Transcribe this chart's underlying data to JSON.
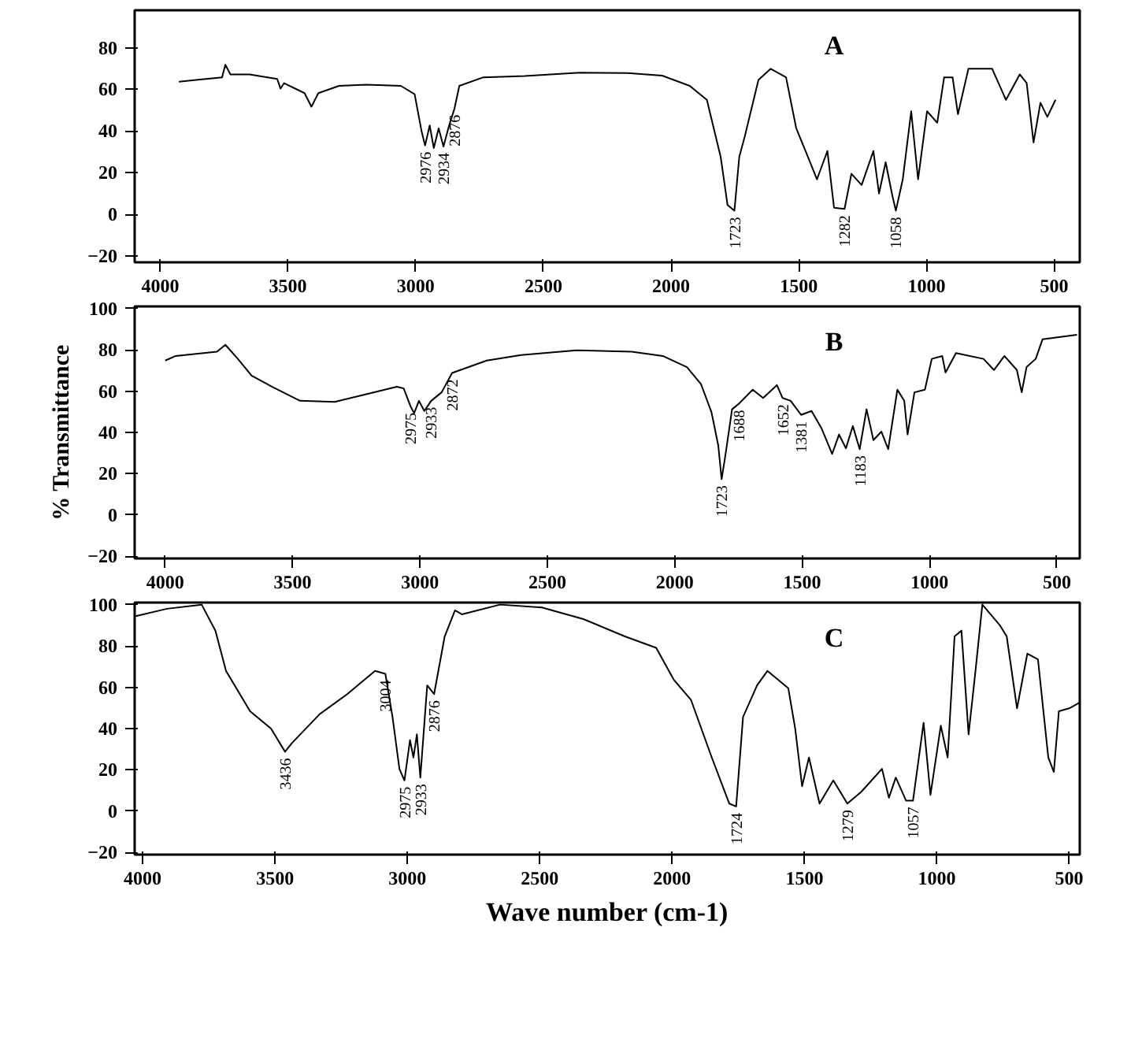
{
  "chart_data": [
    {
      "type": "line",
      "title": "A",
      "xlim": [
        4100,
        400
      ],
      "ylim": [
        -23,
        98
      ],
      "xticks": [
        4000,
        3500,
        3000,
        2500,
        2000,
        1500,
        1000,
        500
      ],
      "yticks": [
        -20,
        0,
        20,
        40,
        60,
        80
      ],
      "series": [
        {
          "color": "#000000",
          "x": [
            3927,
            3758,
            3745,
            3725,
            3650,
            3542,
            3529,
            3515,
            3435,
            3408,
            3381,
            3300,
            3192,
            3058,
            3004,
            2977,
            2963,
            2945,
            2929,
            2910,
            2891,
            2869,
            2848,
            2829,
            2735,
            2573,
            2358,
            2170,
            2035,
            1927,
            1860,
            1806,
            1779,
            1752,
            1733,
            1712,
            1658,
            1610,
            1550,
            1510,
            1469,
            1429,
            1388,
            1362,
            1321,
            1294,
            1254,
            1208,
            1186,
            1160,
            1133,
            1120,
            1093,
            1060,
            1033,
            998,
            958,
            931,
            898,
            877,
            836,
            743,
            689,
            635,
            608,
            581,
            554,
            527,
            495
          ],
          "values": [
            63.7,
            65.8,
            71.8,
            67.2,
            67.2,
            65.0,
            60.4,
            63,
            58.2,
            51.7,
            58.2,
            61.7,
            62.3,
            61.7,
            57.7,
            40,
            33.1,
            42.7,
            31.8,
            41.3,
            32.6,
            42.7,
            50.8,
            61.7,
            65.8,
            66.4,
            68,
            67.8,
            66.6,
            61.7,
            55,
            27.7,
            4.5,
            1.8,
            27.7,
            37.2,
            64.5,
            69.9,
            65.8,
            41.3,
            29,
            16.8,
            30.4,
            3.2,
            2.6,
            19.5,
            14.1,
            30.4,
            10,
            25,
            8.6,
            1.8,
            16.8,
            49.5,
            16.8,
            49.5,
            44,
            65.8,
            65.8,
            48.1,
            69.9,
            69.9,
            55,
            67.2,
            63.1,
            34.5,
            53.6,
            46.8,
            55
          ]
        }
      ],
      "annotations": [
        {
          "text": "2976",
          "x": 2963,
          "y": 33.1
        },
        {
          "text": "2934",
          "x": 2891,
          "y": 32.6
        },
        {
          "text": "2876",
          "x": 2848,
          "y": 50.8
        },
        {
          "text": "1723",
          "x": 1752,
          "y": 1.8
        },
        {
          "text": "1282",
          "x": 1321,
          "y": 2.6
        },
        {
          "text": "1058",
          "x": 1120,
          "y": 1.8
        }
      ]
    },
    {
      "type": "line",
      "title": "B",
      "ylabel": "% Transmittance",
      "xlim": [
        4120,
        410
      ],
      "ylim": [
        -21,
        101
      ],
      "xticks": [
        4000,
        3500,
        3000,
        2500,
        2000,
        1500,
        1000,
        500
      ],
      "yticks": [
        -20,
        0,
        20,
        40,
        60,
        80,
        100
      ],
      "series": [
        {
          "color": "#000000",
          "x": [
            4000,
            3959,
            3797,
            3764,
            3715,
            3661,
            3580,
            3471,
            3335,
            3227,
            3091,
            3064,
            3037,
            3023,
            3004,
            2983,
            2956,
            2915,
            2874,
            2738,
            2603,
            2386,
            2169,
            2047,
            1952,
            1897,
            1856,
            1829,
            1816,
            1802,
            1775,
            1748,
            1694,
            1653,
            1599,
            1577,
            1545,
            1504,
            1463,
            1423,
            1382,
            1355,
            1328,
            1301,
            1274,
            1247,
            1220,
            1189,
            1162,
            1126,
            1099,
            1086,
            1059,
            1018,
            991,
            950,
            937,
            896,
            788,
            747,
            706,
            657,
            638,
            619,
            583,
            556,
            421
          ],
          "values": [
            74.8,
            77,
            79.1,
            82.4,
            75.6,
            67.5,
            62.1,
            55.3,
            54.8,
            58,
            62.1,
            61.3,
            52.6,
            49.3,
            55.3,
            50.4,
            55.3,
            59.4,
            68.8,
            74.8,
            77.5,
            79.7,
            79.1,
            77,
            71.6,
            63.4,
            49.9,
            33.6,
            17.4,
            28.2,
            51.2,
            53.9,
            60.7,
            56.7,
            62.9,
            56.7,
            55.3,
            48.5,
            50.4,
            41.8,
            29.6,
            39,
            32.3,
            43.1,
            31.9,
            51.2,
            36.3,
            40.4,
            31.9,
            60.7,
            55.3,
            39,
            59.4,
            60.7,
            75.6,
            77,
            69,
            78.4,
            75.6,
            70.2,
            77,
            70.2,
            59.4,
            71.6,
            75.6,
            85.1,
            87.3
          ]
        }
      ],
      "annotations": [
        {
          "text": "2975",
          "x": 3037,
          "y": 52.6
        },
        {
          "text": "2933",
          "x": 2956,
          "y": 55.3
        },
        {
          "text": "2872",
          "x": 2874,
          "y": 68.8
        },
        {
          "text": "1723",
          "x": 1816,
          "y": 17.4
        },
        {
          "text": "1688",
          "x": 1748,
          "y": 53.9
        },
        {
          "text": "1652",
          "x": 1577,
          "y": 56.7
        },
        {
          "text": "1381",
          "x": 1504,
          "y": 48.5
        },
        {
          "text": "1183",
          "x": 1274,
          "y": 31.9
        }
      ]
    },
    {
      "type": "line",
      "title": "C",
      "xlabel": "Wave number (cm-1)",
      "xlim": [
        4030,
        460
      ],
      "ylim": [
        -21,
        101
      ],
      "xticks": [
        4000,
        3500,
        3000,
        2500,
        2000,
        1500,
        1000,
        500
      ],
      "yticks": [
        -20,
        0,
        20,
        40,
        60,
        80,
        100
      ],
      "series": [
        {
          "color": "#000000",
          "x": [
            4026,
            3908,
            3777,
            3725,
            3685,
            3594,
            3515,
            3462,
            3436,
            3331,
            3227,
            3122,
            3083,
            3056,
            3030,
            3011,
            2990,
            2977,
            2964,
            2951,
            2925,
            2899,
            2859,
            2820,
            2794,
            2650,
            2492,
            2335,
            2178,
            2060,
            1994,
            1929,
            1850,
            1784,
            1758,
            1732,
            1679,
            1640,
            1561,
            1535,
            1509,
            1483,
            1443,
            1391,
            1338,
            1286,
            1207,
            1181,
            1155,
            1116,
            1090,
            1050,
            1024,
            985,
            959,
            933,
            907,
            880,
            854,
            828,
            763,
            736,
            697,
            658,
            618,
            579,
            558,
            539,
            500,
            460
          ],
          "values": [
            94.4,
            98,
            100,
            87.4,
            67.9,
            48.4,
            40,
            28.8,
            33,
            47,
            56.7,
            67.9,
            66.5,
            45.6,
            20.5,
            14.9,
            34.4,
            26,
            37.2,
            16.3,
            60.9,
            56.7,
            84.6,
            97.2,
            95.3,
            100,
            98.6,
            93,
            84.6,
            79.1,
            63.7,
            54,
            26,
            3.7,
            2.3,
            45.6,
            60.9,
            67.9,
            59.5,
            40,
            12.1,
            26,
            3.7,
            14.9,
            3.7,
            9.3,
            20.5,
            6.5,
            16.3,
            5.1,
            5.1,
            42.8,
            7.9,
            41.4,
            26,
            84.6,
            87.4,
            37.2,
            67.9,
            100,
            90.2,
            84.6,
            49.8,
            76.3,
            73.5,
            26,
            19,
            48.4,
            49.8,
            52.6
          ]
        }
      ],
      "annotations": [
        {
          "text": "3436",
          "x": 3462,
          "y": 28.8
        },
        {
          "text": "3004",
          "x": 3083,
          "y": 66.5
        },
        {
          "text": "2975",
          "x": 3011,
          "y": 14.9
        },
        {
          "text": "2933",
          "x": 2951,
          "y": 16.3
        },
        {
          "text": "2876",
          "x": 2899,
          "y": 56.7
        },
        {
          "text": "1724",
          "x": 1758,
          "y": 2.3
        },
        {
          "text": "1279",
          "x": 1338,
          "y": 3.7
        },
        {
          "text": "1057",
          "x": 1090,
          "y": 5.1
        }
      ]
    }
  ]
}
